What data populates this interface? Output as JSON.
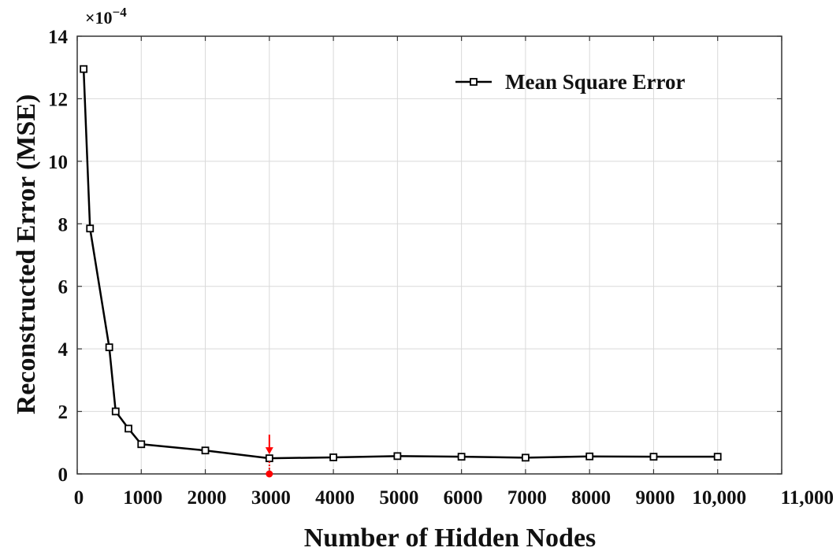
{
  "chart_data": {
    "type": "line",
    "xlabel": "Number of Hidden Nodes",
    "ylabel": "Reconstructed Error (MSE)",
    "y_multiplier": "×10",
    "y_multiplier_exponent": "−4",
    "xlim": [
      0,
      11000
    ],
    "ylim": [
      0,
      14
    ],
    "x_ticks": [
      0,
      1000,
      2000,
      3000,
      4000,
      5000,
      6000,
      7000,
      8000,
      9000,
      10000,
      11000
    ],
    "x_tick_labels": [
      "0",
      "1000",
      "2000",
      "3000",
      "4000",
      "5000",
      "6000",
      "7000",
      "8000",
      "9000",
      "10,000",
      "11,000"
    ],
    "y_ticks": [
      0,
      2,
      4,
      6,
      8,
      10,
      12,
      14
    ],
    "y_tick_labels": [
      "0",
      "2",
      "4",
      "6",
      "8",
      "10",
      "12",
      "14"
    ],
    "grid": true,
    "legend_position": "top-right",
    "series": [
      {
        "name": "Mean Square Error",
        "color": "#000000",
        "marker": "open-square",
        "x": [
          100,
          200,
          500,
          600,
          800,
          1000,
          2000,
          3000,
          4000,
          5000,
          6000,
          7000,
          8000,
          9000,
          10000
        ],
        "y": [
          12.95,
          7.85,
          4.05,
          2.0,
          1.45,
          0.95,
          0.75,
          0.5,
          0.53,
          0.57,
          0.55,
          0.52,
          0.56,
          0.55,
          0.55
        ]
      }
    ],
    "annotation": {
      "x": 3000,
      "y": 0,
      "color": "#ff0000",
      "marker": "arrow-and-dot"
    }
  }
}
